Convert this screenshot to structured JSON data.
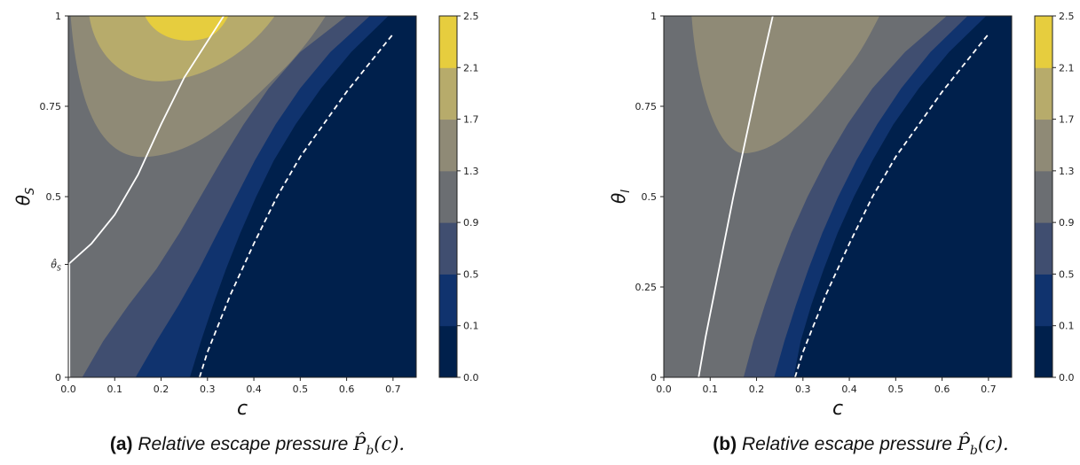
{
  "chart_data": [
    {
      "type": "heatmap",
      "title": "",
      "xlabel": "c",
      "ylabel": "θ_S",
      "xlim": [
        0,
        0.75
      ],
      "ylim": [
        0,
        1
      ],
      "xticks": [
        0.0,
        0.1,
        0.2,
        0.3,
        0.4,
        0.5,
        0.6,
        0.7
      ],
      "xtick_labels": [
        "0.0",
        "0.1",
        "0.2",
        "0.3",
        "0.4",
        "0.5",
        "0.6",
        "0.7"
      ],
      "yticks": [
        0,
        0.3125,
        0.5,
        0.75,
        1
      ],
      "ytick_labels": [
        "0",
        "θ̂_S",
        "0.5",
        "0.75",
        "1"
      ],
      "colorbar": {
        "levels": [
          0.0,
          0.1,
          0.5,
          0.9,
          1.3,
          1.7,
          2.1,
          2.5
        ],
        "labels": [
          "0.0",
          "0.1",
          "0.5",
          "0.9",
          "1.3",
          "1.7",
          "2.1",
          "2.5"
        ],
        "colors": [
          "#00204c",
          "#10336e",
          "#404e70",
          "#6b6e72",
          "#8f8a76",
          "#b7ab6b",
          "#e6cd3e"
        ]
      },
      "contour_bands_c_at_theta": {
        "theta": [
          0,
          0.1,
          0.2,
          0.3,
          0.4,
          0.5,
          0.6,
          0.7,
          0.8,
          0.9,
          1.0
        ],
        "boundary_0.1": [
          0.262,
          0.286,
          0.312,
          0.34,
          0.371,
          0.405,
          0.443,
          0.49,
          0.545,
          0.61,
          0.69
        ],
        "boundary_0.5": [
          0.145,
          0.19,
          0.238,
          0.282,
          0.322,
          0.362,
          0.402,
          0.447,
          0.5,
          0.565,
          0.65
        ],
        "boundary_0.9": [
          0.03,
          0.075,
          0.13,
          0.19,
          0.24,
          0.285,
          0.33,
          0.378,
          0.432,
          0.5,
          0.6
        ]
      },
      "upper_regions": [
        {
          "level": 1.3,
          "from": 0.9,
          "to": 1.3,
          "shape": "wide valley from c≈0.01 at θ=0.38 to c≈0.55 at θ=1"
        },
        {
          "level": 1.7,
          "from": 1.3,
          "to": 1.7,
          "shape": "valley with minimum near c=0.17, θ=0.61"
        },
        {
          "level": 2.1,
          "from": 1.7,
          "to": 2.1,
          "shape": "valley with minimum near c=0.21, θ=0.82"
        },
        {
          "level": 2.5,
          "from": 2.1,
          "to": 2.5,
          "shape": "cap near c=0.18–0.32 at θ=1"
        }
      ],
      "series": [
        {
          "style": "solid white",
          "x": [
            0.0,
            0.05,
            0.1,
            0.15,
            0.2,
            0.25,
            0.3,
            0.335
          ],
          "y": [
            0.3125,
            0.37,
            0.45,
            0.56,
            0.7,
            0.83,
            0.93,
            1.0
          ]
        },
        {
          "style": "dashed white",
          "x": [
            0.283,
            0.3,
            0.35,
            0.4,
            0.45,
            0.5,
            0.55,
            0.6,
            0.65,
            0.7
          ],
          "y": [
            0.0,
            0.07,
            0.23,
            0.37,
            0.5,
            0.61,
            0.7,
            0.79,
            0.87,
            0.95
          ]
        }
      ],
      "caption": {
        "label": "(a)",
        "text": "Relative escape pressure",
        "math": "P̂",
        "math_sub": "b",
        "math_tail": "(c)."
      }
    },
    {
      "type": "heatmap",
      "title": "",
      "xlabel": "c",
      "ylabel": "θ_I",
      "xlim": [
        0,
        0.75
      ],
      "ylim": [
        0,
        1
      ],
      "xticks": [
        0.0,
        0.1,
        0.2,
        0.3,
        0.4,
        0.5,
        0.6,
        0.7
      ],
      "xtick_labels": [
        "0.0",
        "0.1",
        "0.2",
        "0.3",
        "0.4",
        "0.5",
        "0.6",
        "0.7"
      ],
      "yticks": [
        0,
        0.25,
        0.5,
        0.75,
        1
      ],
      "ytick_labels": [
        "0",
        "0.25",
        "0.5",
        "0.75",
        "1"
      ],
      "colorbar": {
        "levels": [
          0.0,
          0.1,
          0.5,
          0.9,
          1.3,
          1.7,
          2.1,
          2.5
        ],
        "labels": [
          "0.0",
          "0.1",
          "0.5",
          "0.9",
          "1.3",
          "1.7",
          "2.1",
          "2.5"
        ],
        "colors": [
          "#00204c",
          "#10336e",
          "#404e70",
          "#6b6e72",
          "#8f8a76",
          "#b7ab6b",
          "#e6cd3e"
        ]
      },
      "contour_bands_c_at_theta": {
        "theta": [
          0,
          0.1,
          0.2,
          0.3,
          0.4,
          0.5,
          0.6,
          0.7,
          0.8,
          0.9,
          1.0
        ],
        "boundary_0.1": [
          0.28,
          0.295,
          0.318,
          0.345,
          0.375,
          0.41,
          0.45,
          0.495,
          0.55,
          0.615,
          0.695
        ],
        "boundary_0.5": [
          0.238,
          0.26,
          0.285,
          0.312,
          0.342,
          0.376,
          0.415,
          0.46,
          0.512,
          0.575,
          0.655
        ],
        "boundary_0.9": [
          0.172,
          0.193,
          0.218,
          0.245,
          0.275,
          0.31,
          0.35,
          0.396,
          0.45,
          0.52,
          0.61
        ]
      },
      "upper_regions": [
        {
          "level": 1.3,
          "from": 0.9,
          "to": 1.3,
          "shape": "valley with minimum near c=0.17, θ=0.62"
        }
      ],
      "series": [
        {
          "style": "solid white",
          "x": [
            0.075,
            0.09,
            0.11,
            0.13,
            0.15,
            0.17,
            0.19,
            0.21,
            0.235
          ],
          "y": [
            0.0,
            0.11,
            0.24,
            0.37,
            0.5,
            0.62,
            0.74,
            0.86,
            1.0
          ]
        },
        {
          "style": "dashed white",
          "x": [
            0.283,
            0.3,
            0.35,
            0.4,
            0.45,
            0.5,
            0.55,
            0.6,
            0.65,
            0.7
          ],
          "y": [
            0.0,
            0.07,
            0.23,
            0.37,
            0.5,
            0.61,
            0.7,
            0.79,
            0.87,
            0.95
          ]
        }
      ],
      "caption": {
        "label": "(b)",
        "text": "Relative escape pressure",
        "math": "P̂",
        "math_sub": "b",
        "math_tail": "(c)."
      }
    }
  ]
}
